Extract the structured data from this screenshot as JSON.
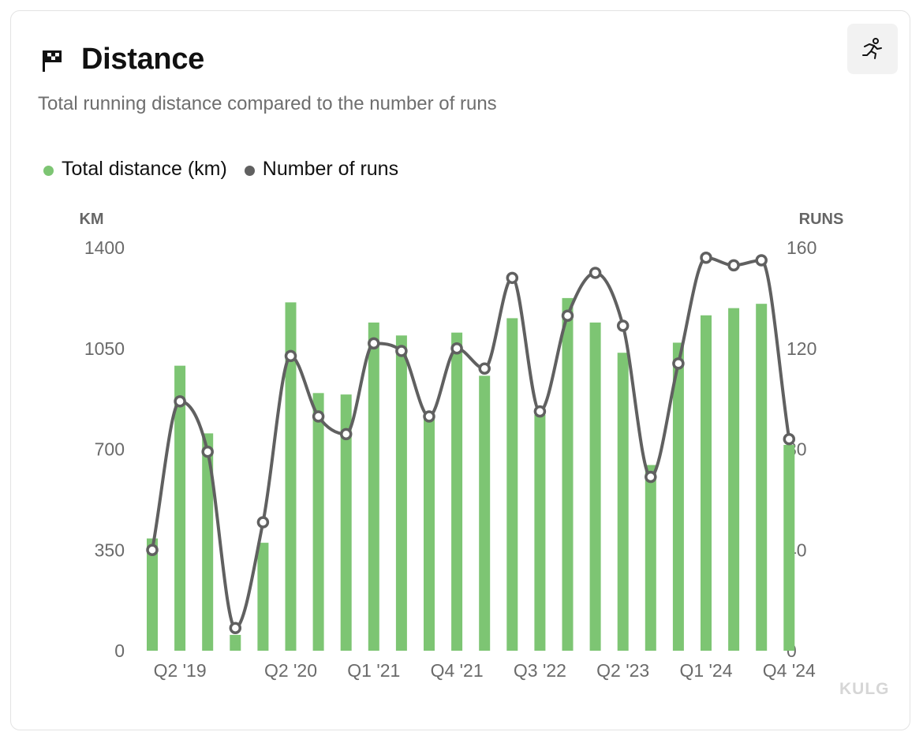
{
  "header": {
    "title": "Distance",
    "subtitle": "Total running distance compared to the number of runs",
    "flag_icon": "checkered-flag-icon",
    "action_icon": "running-person-icon"
  },
  "legend": {
    "items": [
      {
        "label": "Total distance (km)",
        "color": "#7dc573"
      },
      {
        "label": "Number of runs",
        "color": "#606060"
      }
    ]
  },
  "watermark": "KULG",
  "chart_data": {
    "type": "bar",
    "categories": [
      "Q1 '19",
      "Q2 '19",
      "Q3 '19",
      "Q4 '19",
      "Q1 '20",
      "Q2 '20",
      "Q3 '20",
      "Q4 '20",
      "Q1 '21",
      "Q2 '21",
      "Q3 '21",
      "Q4 '21",
      "Q1 '22",
      "Q2 '22",
      "Q3 '22",
      "Q4 '22",
      "Q1 '23",
      "Q2 '23",
      "Q3 '23",
      "Q4 '23",
      "Q1 '24",
      "Q2 '24",
      "Q3 '24",
      "Q4 '24"
    ],
    "x_tick_labels": [
      "Q2 '19",
      "Q2 '20",
      "Q1 '21",
      "Q4 '21",
      "Q3 '22",
      "Q2 '23",
      "Q1 '24",
      "Q4 '24"
    ],
    "series": [
      {
        "name": "Total distance (km)",
        "type": "bar",
        "axis": "left",
        "color": "#7dc573",
        "values": [
          390,
          990,
          755,
          55,
          375,
          1210,
          895,
          890,
          1140,
          1095,
          815,
          1105,
          955,
          1155,
          820,
          1225,
          1140,
          1035,
          645,
          1070,
          1165,
          1190,
          1205,
          715
        ]
      },
      {
        "name": "Number of runs",
        "type": "line",
        "axis": "right",
        "color": "#606060",
        "values": [
          40,
          99,
          79,
          9,
          51,
          117,
          93,
          86,
          122,
          119,
          93,
          120,
          112,
          148,
          95,
          133,
          150,
          129,
          69,
          114,
          156,
          153,
          155,
          84
        ]
      }
    ],
    "y_left": {
      "label": "KM",
      "ticks": [
        0,
        350,
        700,
        1050,
        1400
      ],
      "range": [
        0,
        1400
      ]
    },
    "y_right": {
      "label": "RUNS",
      "ticks": [
        0,
        40,
        80,
        120,
        160
      ],
      "range": [
        0,
        160
      ]
    },
    "grid": false,
    "legend_position": "top-left"
  }
}
